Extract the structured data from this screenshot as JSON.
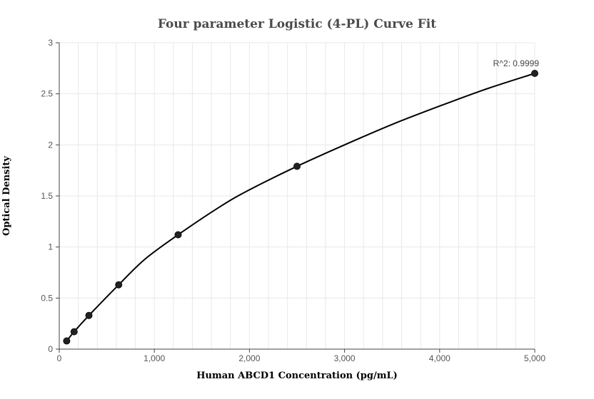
{
  "chart_data": {
    "type": "scatter",
    "title": "Four parameter Logistic (4-PL) Curve Fit",
    "xlabel": "Human ABCD1 Concentration (pg/mL)",
    "ylabel": "Optical Density",
    "xlim": [
      0,
      5000
    ],
    "ylim": [
      0,
      3
    ],
    "x_ticks": [
      0,
      1000,
      2000,
      3000,
      4000,
      5000
    ],
    "x_tick_labels": [
      "0",
      "1,000",
      "2,000",
      "3,000",
      "4,000",
      "5,000"
    ],
    "y_ticks": [
      0,
      0.5,
      1,
      1.5,
      2,
      2.5,
      3
    ],
    "y_tick_labels": [
      "0",
      "0.5",
      "1",
      "1.5",
      "2",
      "2.5",
      "3"
    ],
    "grid": true,
    "series": [
      {
        "x": [
          78,
          156,
          312,
          625,
          1250,
          2500,
          5000
        ],
        "y": [
          0.08,
          0.17,
          0.33,
          0.63,
          1.12,
          1.79,
          2.7
        ]
      }
    ],
    "curve": {
      "x": [
        78,
        156,
        312,
        625,
        900,
        1250,
        1700,
        2000,
        2500,
        3000,
        3500,
        4000,
        4500,
        5000
      ],
      "y": [
        0.08,
        0.17,
        0.33,
        0.63,
        0.88,
        1.12,
        1.4,
        1.56,
        1.79,
        2.0,
        2.2,
        2.38,
        2.55,
        2.7
      ]
    },
    "annotations": [
      {
        "text": "R^2: 0.9999",
        "x": 5000,
        "y": 2.7
      }
    ],
    "colors": {
      "marker": "#222222",
      "line": "#000000",
      "grid": "#e8e8e8",
      "axis": "#444444"
    }
  }
}
